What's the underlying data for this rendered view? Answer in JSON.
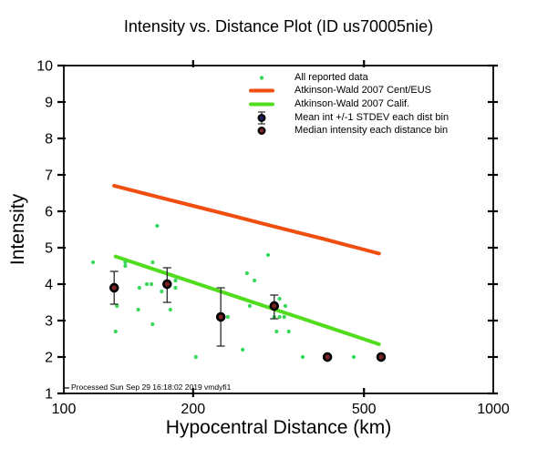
{
  "chart_data": {
    "type": "scatter",
    "title": "Intensity vs. Distance Plot (ID us70005nie)",
    "xlabel": "Hypocentral Distance (km)",
    "ylabel": "Intensity",
    "footer": "Processed Sun Sep 29 16:18:02 2019 vmdyfi1",
    "x_scale": "log",
    "xlim": [
      100,
      1000
    ],
    "ylim": [
      1,
      10
    ],
    "x_ticks": [
      100,
      200,
      500,
      1000
    ],
    "x_inner_ticks": [
      200,
      500
    ],
    "y_ticks": [
      1,
      2,
      3,
      4,
      5,
      6,
      7,
      8,
      9,
      10
    ],
    "grid": false,
    "legend_position": "top-center-inside",
    "colors": {
      "scatter": "#37d858",
      "ceus_line": "#f04e0e",
      "calif_line": "#52dc1e",
      "mean_fill": "#1c1c66",
      "median_fill": "#7c2424",
      "marker_edge": "#000000",
      "errorbar": "#2b2b2b",
      "frame": "#000000"
    },
    "legend": [
      {
        "label": "All reported data",
        "symbol": "dot",
        "color_key": "scatter"
      },
      {
        "label": "Atkinson-Wald 2007 Cent/EUS",
        "symbol": "line",
        "color_key": "ceus_line"
      },
      {
        "label": "Atkinson-Wald 2007 Calif.",
        "symbol": "line",
        "color_key": "calif_line"
      },
      {
        "label": "Mean int +/-1 STDEV each dist bin",
        "symbol": "mean",
        "color_key": "mean_fill"
      },
      {
        "label": "Median intensity each distance bin",
        "symbol": "median",
        "color_key": "median_fill"
      }
    ],
    "series": {
      "all_reported": {
        "name": "All reported data",
        "points": [
          [
            117,
            4.6
          ],
          [
            139,
            4.6
          ],
          [
            139,
            4.5
          ],
          [
            161,
            4.6
          ],
          [
            165,
            5.6
          ],
          [
            150,
            3.9
          ],
          [
            156,
            4.0
          ],
          [
            160,
            4.0
          ],
          [
            169,
            3.8
          ],
          [
            182,
            4.1
          ],
          [
            182,
            3.9
          ],
          [
            133,
            3.4
          ],
          [
            149,
            3.3
          ],
          [
            177,
            3.3
          ],
          [
            161,
            2.9
          ],
          [
            132,
            2.7
          ],
          [
            203,
            2.0
          ],
          [
            241,
            3.1
          ],
          [
            261,
            2.2
          ],
          [
            267,
            4.3
          ],
          [
            278,
            4.1
          ],
          [
            299,
            4.8
          ],
          [
            271,
            3.4
          ],
          [
            318,
            3.6
          ],
          [
            328,
            3.4
          ],
          [
            309,
            3.1
          ],
          [
            318,
            3.1
          ],
          [
            326,
            3.1
          ],
          [
            313,
            2.7
          ],
          [
            334,
            2.7
          ],
          [
            360,
            2.0
          ],
          [
            473,
            2.0
          ]
        ]
      },
      "aw2007_ceus": {
        "name": "Atkinson-Wald 2007 Cent/EUS",
        "points": [
          [
            131,
            6.7
          ],
          [
            160,
            6.44
          ],
          [
            200,
            6.15
          ],
          [
            250,
            5.86
          ],
          [
            300,
            5.62
          ],
          [
            350,
            5.42
          ],
          [
            400,
            5.25
          ],
          [
            450,
            5.09
          ],
          [
            500,
            4.95
          ],
          [
            542,
            4.84
          ]
        ]
      },
      "aw2007_calif": {
        "name": "Atkinson-Wald 2007 Calif.",
        "points": [
          [
            132,
            4.76
          ],
          [
            160,
            4.43
          ],
          [
            200,
            4.05
          ],
          [
            250,
            3.67
          ],
          [
            300,
            3.36
          ],
          [
            350,
            3.1
          ],
          [
            400,
            2.87
          ],
          [
            450,
            2.67
          ],
          [
            500,
            2.49
          ],
          [
            542,
            2.35
          ]
        ]
      },
      "mean_bins": {
        "name": "Mean int +/-1 STDEV each dist bin",
        "points": [
          [
            131,
            3.9,
            3.45,
            4.35
          ],
          [
            174,
            4.0,
            3.5,
            4.45
          ],
          [
            232,
            3.1,
            2.3,
            3.9
          ],
          [
            309,
            3.4,
            3.05,
            3.7
          ],
          [
            411,
            2.0,
            2.0,
            2.0
          ],
          [
            548,
            2.0,
            2.0,
            2.0
          ]
        ]
      },
      "median_bins": {
        "name": "Median intensity each distance bin",
        "points": [
          [
            131,
            3.9
          ],
          [
            174,
            4.0
          ],
          [
            232,
            3.1
          ],
          [
            309,
            3.4
          ],
          [
            411,
            2.0
          ],
          [
            548,
            2.0
          ]
        ]
      }
    }
  }
}
